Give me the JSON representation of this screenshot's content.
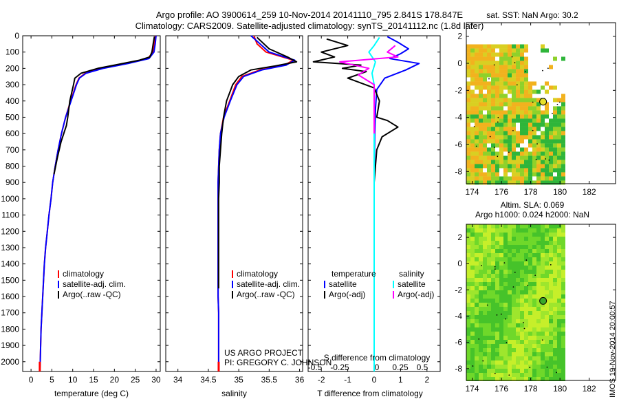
{
  "header": {
    "line1": "Argo profile: AO 3900614_259 10-Nov-2014 20141110_795 2.841S 178.847E",
    "line2": "Climatology: CARS2009. Satellite-adjusted climatology: synTS_20141112.nc (1.8d later)"
  },
  "footer": {
    "project": "US ARGO PROJECT",
    "pi": "PI: GREGORY C. JOHNSON",
    "stamp": "IMOS 19-Nov-2014 20:00:57"
  },
  "map_titles": {
    "sst": "sat. SST: NaN Argo: 30.2",
    "sla_line1": "Altim. SLA: 0.069",
    "sla_line2": "Argo h1000: 0.024 h2000: NaN"
  },
  "colors": {
    "climatology": "#ff0000",
    "satellite": "#0000ff",
    "argo": "#000000",
    "satellite_salinity": "#00ffff",
    "argo_salinity": "#ff00ff"
  },
  "chart_data": [
    {
      "id": "temperature",
      "type": "line",
      "xlabel": "temperature (deg C)",
      "ylabel": "",
      "xlim": [
        -2,
        31
      ],
      "ylim": [
        2060,
        0
      ],
      "xticks": [
        "0",
        "5",
        "10",
        "15",
        "20",
        "25",
        "30"
      ],
      "xtick_values": [
        0,
        5,
        10,
        15,
        20,
        25,
        30
      ],
      "yticks": [
        "0",
        "100",
        "200",
        "300",
        "400",
        "500",
        "600",
        "700",
        "800",
        "900",
        "1000",
        "1100",
        "1200",
        "1300",
        "1400",
        "1500",
        "1600",
        "1700",
        "1800",
        "1900",
        "2000"
      ],
      "ytick_values": [
        0,
        100,
        200,
        300,
        400,
        500,
        600,
        700,
        800,
        900,
        1000,
        1100,
        1200,
        1300,
        1400,
        1500,
        1600,
        1700,
        1800,
        1900,
        2000
      ],
      "legend": [
        "climatology",
        "satellite-adj. clim.",
        "Argo(..raw -QC)"
      ],
      "series": [
        {
          "name": "climatology",
          "color": "climatology",
          "x": [
            29.8,
            29.6,
            29.3,
            28.0,
            23.0,
            17.0,
            13.0,
            11.5,
            10.8,
            9.5,
            8.3,
            7.3,
            6.5,
            5.8,
            5.2,
            4.8,
            4.3,
            3.9,
            3.5,
            3.2,
            3.0,
            2.8,
            2.6,
            2.4,
            2.3,
            2.2,
            2.1
          ],
          "y": [
            0,
            50,
            100,
            140,
            170,
            200,
            230,
            260,
            300,
            400,
            500,
            600,
            700,
            800,
            900,
            1000,
            1100,
            1200,
            1300,
            1400,
            1500,
            1600,
            1700,
            1800,
            1900,
            2000,
            2060
          ]
        },
        {
          "name": "satellite-adj. clim.",
          "color": "satellite",
          "x": [
            30.0,
            29.8,
            29.5,
            28.3,
            23.3,
            17.3,
            13.2,
            11.6,
            10.9,
            9.6,
            8.3,
            7.3,
            6.5,
            5.8,
            5.2,
            4.8,
            4.3,
            3.9,
            3.5,
            3.2,
            3.0,
            2.8,
            2.6,
            2.4,
            2.3,
            2.2,
            2.1
          ],
          "y": [
            0,
            50,
            100,
            140,
            170,
            200,
            230,
            260,
            300,
            400,
            500,
            600,
            700,
            800,
            900,
            1000,
            1100,
            1200,
            1300,
            1400,
            1500,
            1600,
            1700,
            1800,
            1900,
            2000,
            2060
          ]
        },
        {
          "name": "Argo(..raw -QC)",
          "color": "argo",
          "x": [
            29.6,
            29.3,
            29.0,
            28.5,
            26.0,
            21.0,
            16.0,
            12.0,
            10.5,
            10.2,
            9.3,
            8.8,
            8.5,
            7.2,
            6.3,
            5.5
          ],
          "y": [
            5,
            50,
            100,
            130,
            150,
            175,
            200,
            230,
            260,
            300,
            400,
            500,
            550,
            650,
            750,
            850
          ]
        }
      ]
    },
    {
      "id": "salinity",
      "type": "line",
      "xlabel": "salinity",
      "ylabel": "",
      "xlim": [
        33.8,
        36.05
      ],
      "ylim": [
        2060,
        0
      ],
      "xticks": [
        "34",
        "34.5",
        "35",
        "35.5",
        "36"
      ],
      "xtick_values": [
        34,
        34.5,
        35,
        35.5,
        36
      ],
      "legend": [
        "climatology",
        "satellite-adj. clim.",
        "Argo(..raw -QC)"
      ],
      "series": [
        {
          "name": "climatology",
          "color": "climatology",
          "x": [
            35.25,
            35.3,
            35.45,
            35.9,
            35.75,
            35.35,
            35.05,
            34.95,
            34.85,
            34.75,
            34.7,
            34.68,
            34.67,
            34.66,
            34.66,
            34.66,
            34.66,
            34.66,
            34.66,
            34.66,
            34.66,
            34.67,
            34.67,
            34.67,
            34.67,
            34.67,
            34.67
          ],
          "y": [
            0,
            50,
            100,
            150,
            180,
            210,
            250,
            300,
            400,
            500,
            600,
            700,
            800,
            900,
            1000,
            1100,
            1200,
            1300,
            1400,
            1500,
            1600,
            1700,
            1800,
            1900,
            2000,
            2030,
            2060
          ]
        },
        {
          "name": "satellite-adj. clim.",
          "color": "satellite",
          "x": [
            35.2,
            35.35,
            35.5,
            35.92,
            35.78,
            35.38,
            35.08,
            34.97,
            34.86,
            34.76,
            34.7,
            34.68,
            34.67,
            34.66,
            34.66,
            34.66,
            34.66,
            34.66,
            34.66,
            34.66,
            34.66,
            34.67,
            34.67,
            34.67,
            34.67,
            34.67,
            34.67
          ],
          "y": [
            0,
            50,
            100,
            150,
            180,
            210,
            250,
            300,
            400,
            500,
            600,
            700,
            800,
            900,
            1000,
            1100,
            1200,
            1300,
            1400,
            1500,
            1600,
            1700,
            1800,
            1900,
            2000,
            2030,
            2060
          ]
        },
        {
          "name": "Argo(..raw -QC)",
          "color": "argo",
          "x": [
            35.3,
            35.5,
            35.8,
            35.95,
            35.6,
            35.2,
            35.0,
            34.9,
            34.8,
            34.75,
            34.72,
            34.7,
            34.68,
            34.68,
            34.67,
            34.67,
            34.67,
            34.67,
            34.67,
            34.67,
            34.67
          ],
          "y": [
            10,
            80,
            130,
            160,
            185,
            210,
            250,
            300,
            400,
            500,
            600,
            700,
            800,
            900,
            1000,
            1100,
            1200,
            1300,
            1400,
            1500,
            1550
          ]
        }
      ]
    },
    {
      "id": "difference",
      "type": "line",
      "xlabel": "T difference from climatology",
      "xlabel_top": "S difference from climatology",
      "ylabel": "",
      "xlim": [
        -2.5,
        2.5
      ],
      "ylim": [
        2060,
        0
      ],
      "xticks": [
        "-2",
        "-1",
        "0",
        "1",
        "2"
      ],
      "xtick_values": [
        -2,
        -1,
        0,
        1,
        2
      ],
      "xticks_s": [
        "-0.5",
        "-0.25",
        "0",
        "0.25",
        "0.5"
      ],
      "xtick_s_values": [
        -0.5,
        -0.25,
        0,
        0.25,
        0.5
      ],
      "legend_titles": [
        "temperature",
        "salinity"
      ],
      "legend": [
        "satellite",
        "Argo(-adj)",
        "satellite",
        "Argo(-adj)"
      ],
      "series": [
        {
          "name": "satellite",
          "color": "satellite",
          "x": [
            0.5,
            0.9,
            1.3,
            1.0,
            0.6,
            1.7,
            1.2,
            0.4,
            0.1,
            0.05,
            0.02,
            0.0,
            0.0,
            0.0
          ],
          "y": [
            5,
            40,
            80,
            110,
            140,
            170,
            210,
            260,
            330,
            450,
            600,
            900,
            1300,
            1550
          ]
        },
        {
          "name": "Argo(-adj)",
          "color": "argo",
          "x": [
            -1.8,
            -1.0,
            -2.0,
            -1.5,
            -2.3,
            -0.5,
            -1.2,
            -0.3,
            -1.0,
            0.0,
            0.2,
            0.1,
            0.5,
            0.9,
            0.3,
            0.1,
            0.0,
            0.0,
            0.0
          ],
          "y": [
            20,
            60,
            100,
            130,
            160,
            180,
            200,
            220,
            260,
            320,
            400,
            500,
            520,
            560,
            620,
            700,
            900,
            1200,
            1550
          ]
        },
        {
          "name": "satellite",
          "color": "satellite_salinity",
          "x": [
            0.2,
            0.0,
            -0.2,
            0.05,
            -0.08,
            0.0,
            0.0,
            0.0,
            0.0
          ],
          "y": [
            10,
            60,
            100,
            160,
            230,
            300,
            500,
            1000,
            2060
          ]
        },
        {
          "name": "Argo(-adj)",
          "color": "argo_salinity",
          "x": [
            0.8,
            0.5,
            0.9,
            -1.3,
            -0.2,
            -0.6,
            0.0,
            0.0
          ],
          "y": [
            60,
            100,
            130,
            160,
            200,
            240,
            300,
            600
          ]
        }
      ]
    },
    {
      "id": "map_sst",
      "type": "heatmap",
      "title": "sat. SST: NaN Argo: 30.2",
      "xlim": [
        173.6,
        183.8
      ],
      "ylim": [
        -8.9,
        3.0
      ],
      "xticks": [
        "174",
        "176",
        "178",
        "180",
        "182"
      ],
      "xtick_values": [
        174,
        176,
        178,
        180,
        182
      ],
      "yticks": [
        "2",
        "0",
        "-2",
        "-4",
        "-6",
        "-8"
      ],
      "ytick_values": [
        2,
        0,
        -2,
        -4,
        -6,
        -8
      ],
      "float_position": [
        178.847,
        -2.841
      ],
      "float_color": "#e6e02a"
    },
    {
      "id": "map_sla",
      "type": "heatmap",
      "title": "Altim. SLA: 0.069",
      "xlim": [
        173.6,
        183.8
      ],
      "ylim": [
        -8.9,
        3.0
      ],
      "xticks": [
        "174",
        "176",
        "178",
        "180",
        "182"
      ],
      "xtick_values": [
        174,
        176,
        178,
        180,
        182
      ],
      "yticks": [
        "2",
        "0",
        "-2",
        "-4",
        "-6",
        "-8"
      ],
      "ytick_values": [
        2,
        0,
        -2,
        -4,
        -6,
        -8
      ],
      "float_position": [
        178.847,
        -2.841
      ],
      "float_color": "#3aa92a"
    }
  ]
}
